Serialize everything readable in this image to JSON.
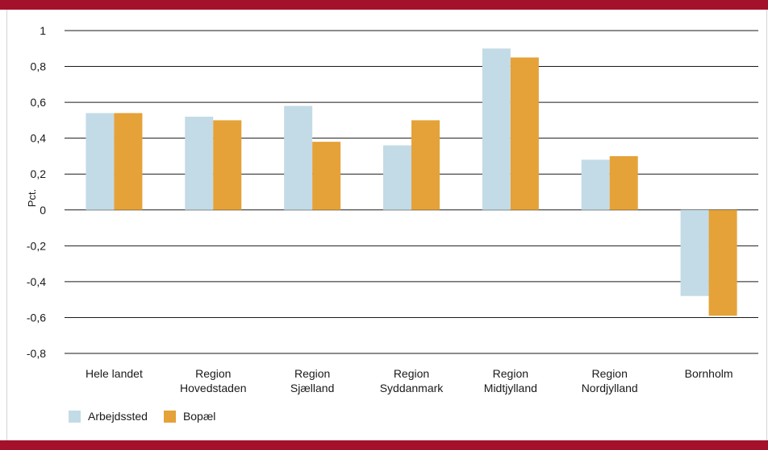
{
  "chart_data": {
    "type": "bar",
    "title": "",
    "xlabel": "",
    "ylabel": "Pct.",
    "ylim": [
      -0.8,
      1
    ],
    "yticks": [
      "1",
      "0,8",
      "0,6",
      "0,4",
      "0,2",
      "0",
      "-0,2",
      "-0,4",
      "-0,6",
      "-0,8"
    ],
    "categories": [
      [
        "Hele landet"
      ],
      [
        "Region",
        "Hovedstaden"
      ],
      [
        "Region",
        "Sjælland"
      ],
      [
        "Region",
        "Syddanmark"
      ],
      [
        "Region",
        "Midtjylland"
      ],
      [
        "Region",
        "Nordjylland"
      ],
      [
        "Bornholm"
      ]
    ],
    "series": [
      {
        "name": "Arbejdssted",
        "color": "#c3dbe6",
        "values": [
          0.54,
          0.52,
          0.58,
          0.36,
          0.9,
          0.28,
          -0.48
        ]
      },
      {
        "name": "Bopæl",
        "color": "#e5a238",
        "values": [
          0.54,
          0.5,
          0.38,
          0.5,
          0.85,
          0.3,
          -0.59
        ]
      }
    ],
    "grid": true,
    "legend_position": "bottom-left"
  },
  "frame": {
    "top_bar_color": "#a3112b",
    "bottom_bar_color": "#a3112b"
  }
}
